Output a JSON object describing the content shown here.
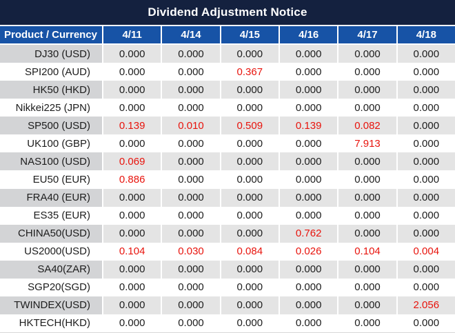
{
  "colors": {
    "title_bg": "#14213f",
    "header_bg": "#1753a6",
    "gray_label_bg": "#d3d4d6",
    "gray_cell_bg": "#e4e4e4",
    "white_row_bg": "#ffffff",
    "header_text": "#ffffff",
    "text_black": "#1c1c1c",
    "text_red": "#e8130c"
  },
  "chart_data": {
    "type": "table",
    "title": "Dividend Adjustment Notice",
    "columns": [
      "Product / Currency",
      "4/11",
      "4/14",
      "4/15",
      "4/16",
      "4/17",
      "4/18"
    ],
    "rows": [
      {
        "product": "DJ30 (USD)",
        "values": [
          "0.000",
          "0.000",
          "0.000",
          "0.000",
          "0.000",
          "0.000"
        ],
        "red_indices": []
      },
      {
        "product": "SPI200 (AUD)",
        "values": [
          "0.000",
          "0.000",
          "0.367",
          "0.000",
          "0.000",
          "0.000"
        ],
        "red_indices": [
          2
        ]
      },
      {
        "product": "HK50 (HKD)",
        "values": [
          "0.000",
          "0.000",
          "0.000",
          "0.000",
          "0.000",
          "0.000"
        ],
        "red_indices": []
      },
      {
        "product": "Nikkei225 (JPN)",
        "values": [
          "0.000",
          "0.000",
          "0.000",
          "0.000",
          "0.000",
          "0.000"
        ],
        "red_indices": []
      },
      {
        "product": "SP500 (USD)",
        "values": [
          "0.139",
          "0.010",
          "0.509",
          "0.139",
          "0.082",
          "0.000"
        ],
        "red_indices": [
          0,
          1,
          2,
          3,
          4
        ]
      },
      {
        "product": "UK100 (GBP)",
        "values": [
          "0.000",
          "0.000",
          "0.000",
          "0.000",
          "7.913",
          "0.000"
        ],
        "red_indices": [
          4
        ]
      },
      {
        "product": "NAS100 (USD)",
        "values": [
          "0.069",
          "0.000",
          "0.000",
          "0.000",
          "0.000",
          "0.000"
        ],
        "red_indices": [
          0
        ]
      },
      {
        "product": "EU50 (EUR)",
        "values": [
          "0.886",
          "0.000",
          "0.000",
          "0.000",
          "0.000",
          "0.000"
        ],
        "red_indices": [
          0
        ]
      },
      {
        "product": "FRA40 (EUR)",
        "values": [
          "0.000",
          "0.000",
          "0.000",
          "0.000",
          "0.000",
          "0.000"
        ],
        "red_indices": []
      },
      {
        "product": "ES35 (EUR)",
        "values": [
          "0.000",
          "0.000",
          "0.000",
          "0.000",
          "0.000",
          "0.000"
        ],
        "red_indices": []
      },
      {
        "product": "CHINA50(USD)",
        "values": [
          "0.000",
          "0.000",
          "0.000",
          "0.762",
          "0.000",
          "0.000"
        ],
        "red_indices": [
          3
        ]
      },
      {
        "product": "US2000(USD)",
        "values": [
          "0.104",
          "0.030",
          "0.084",
          "0.026",
          "0.104",
          "0.004"
        ],
        "red_indices": [
          0,
          1,
          2,
          3,
          4,
          5
        ]
      },
      {
        "product": "SA40(ZAR)",
        "values": [
          "0.000",
          "0.000",
          "0.000",
          "0.000",
          "0.000",
          "0.000"
        ],
        "red_indices": []
      },
      {
        "product": "SGP20(SGD)",
        "values": [
          "0.000",
          "0.000",
          "0.000",
          "0.000",
          "0.000",
          "0.000"
        ],
        "red_indices": []
      },
      {
        "product": "TWINDEX(USD)",
        "values": [
          "0.000",
          "0.000",
          "0.000",
          "0.000",
          "0.000",
          "2.056"
        ],
        "red_indices": [
          5
        ]
      },
      {
        "product": "HKTECH(HKD)",
        "values": [
          "0.000",
          "0.000",
          "0.000",
          "0.000",
          "0.000",
          "0.000"
        ],
        "red_indices": []
      }
    ]
  }
}
